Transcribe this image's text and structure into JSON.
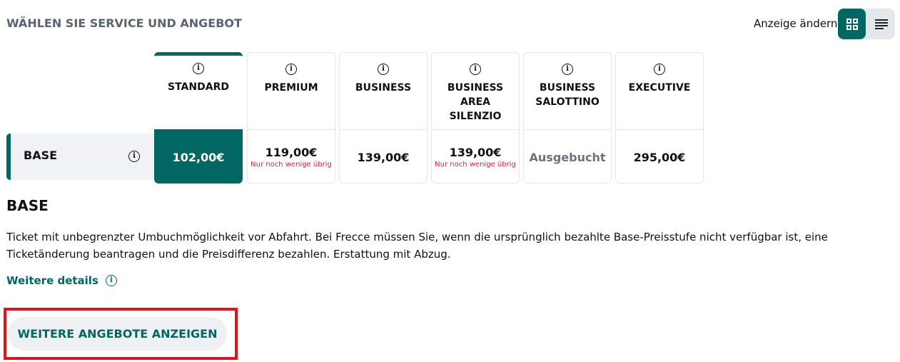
{
  "header": {
    "title": "WÄHLEN SIE SERVICE UND ANGEBOT",
    "view_label": "Anzeige ändern",
    "view_modes": [
      {
        "icon": "grid-icon",
        "active": true
      },
      {
        "icon": "list-icon",
        "active": false
      }
    ]
  },
  "row": {
    "label": "BASE"
  },
  "columns": [
    {
      "name": "STANDARD",
      "price": "102,00€",
      "note": "",
      "selected": true
    },
    {
      "name": "PREMIUM",
      "price": "119,00€",
      "note": "Nur noch wenige übrig"
    },
    {
      "name": "BUSINESS",
      "price": "139,00€",
      "note": ""
    },
    {
      "name": "BUSINESS AREA SILENZIO",
      "price": "139,00€",
      "note": "Nur noch wenige übrig"
    },
    {
      "name": "BUSINESS SALOTTINO",
      "price": "Ausgebucht",
      "note": "",
      "sold_out": true
    },
    {
      "name": "EXECUTIVE",
      "price": "295,00€",
      "note": ""
    }
  ],
  "detail": {
    "title": "BASE",
    "description": "Ticket mit unbegrenzter Umbuchmöglichkeit vor Abfahrt. Bei Frecce müssen Sie, wenn die ursprünglich bezahlte Base-Preisstufe nicht verfügbar ist, eine Ticketänderung beantragen und die Preisdifferenz bezahlen. Erstattung mit Abzug.",
    "more_link": "Weitere details",
    "more_offers_button": "WEITERE ANGEBOTE ANZEIGEN"
  },
  "colors": {
    "accent": "#006763",
    "warning": "#d7263d",
    "highlight": "#e0131b"
  }
}
